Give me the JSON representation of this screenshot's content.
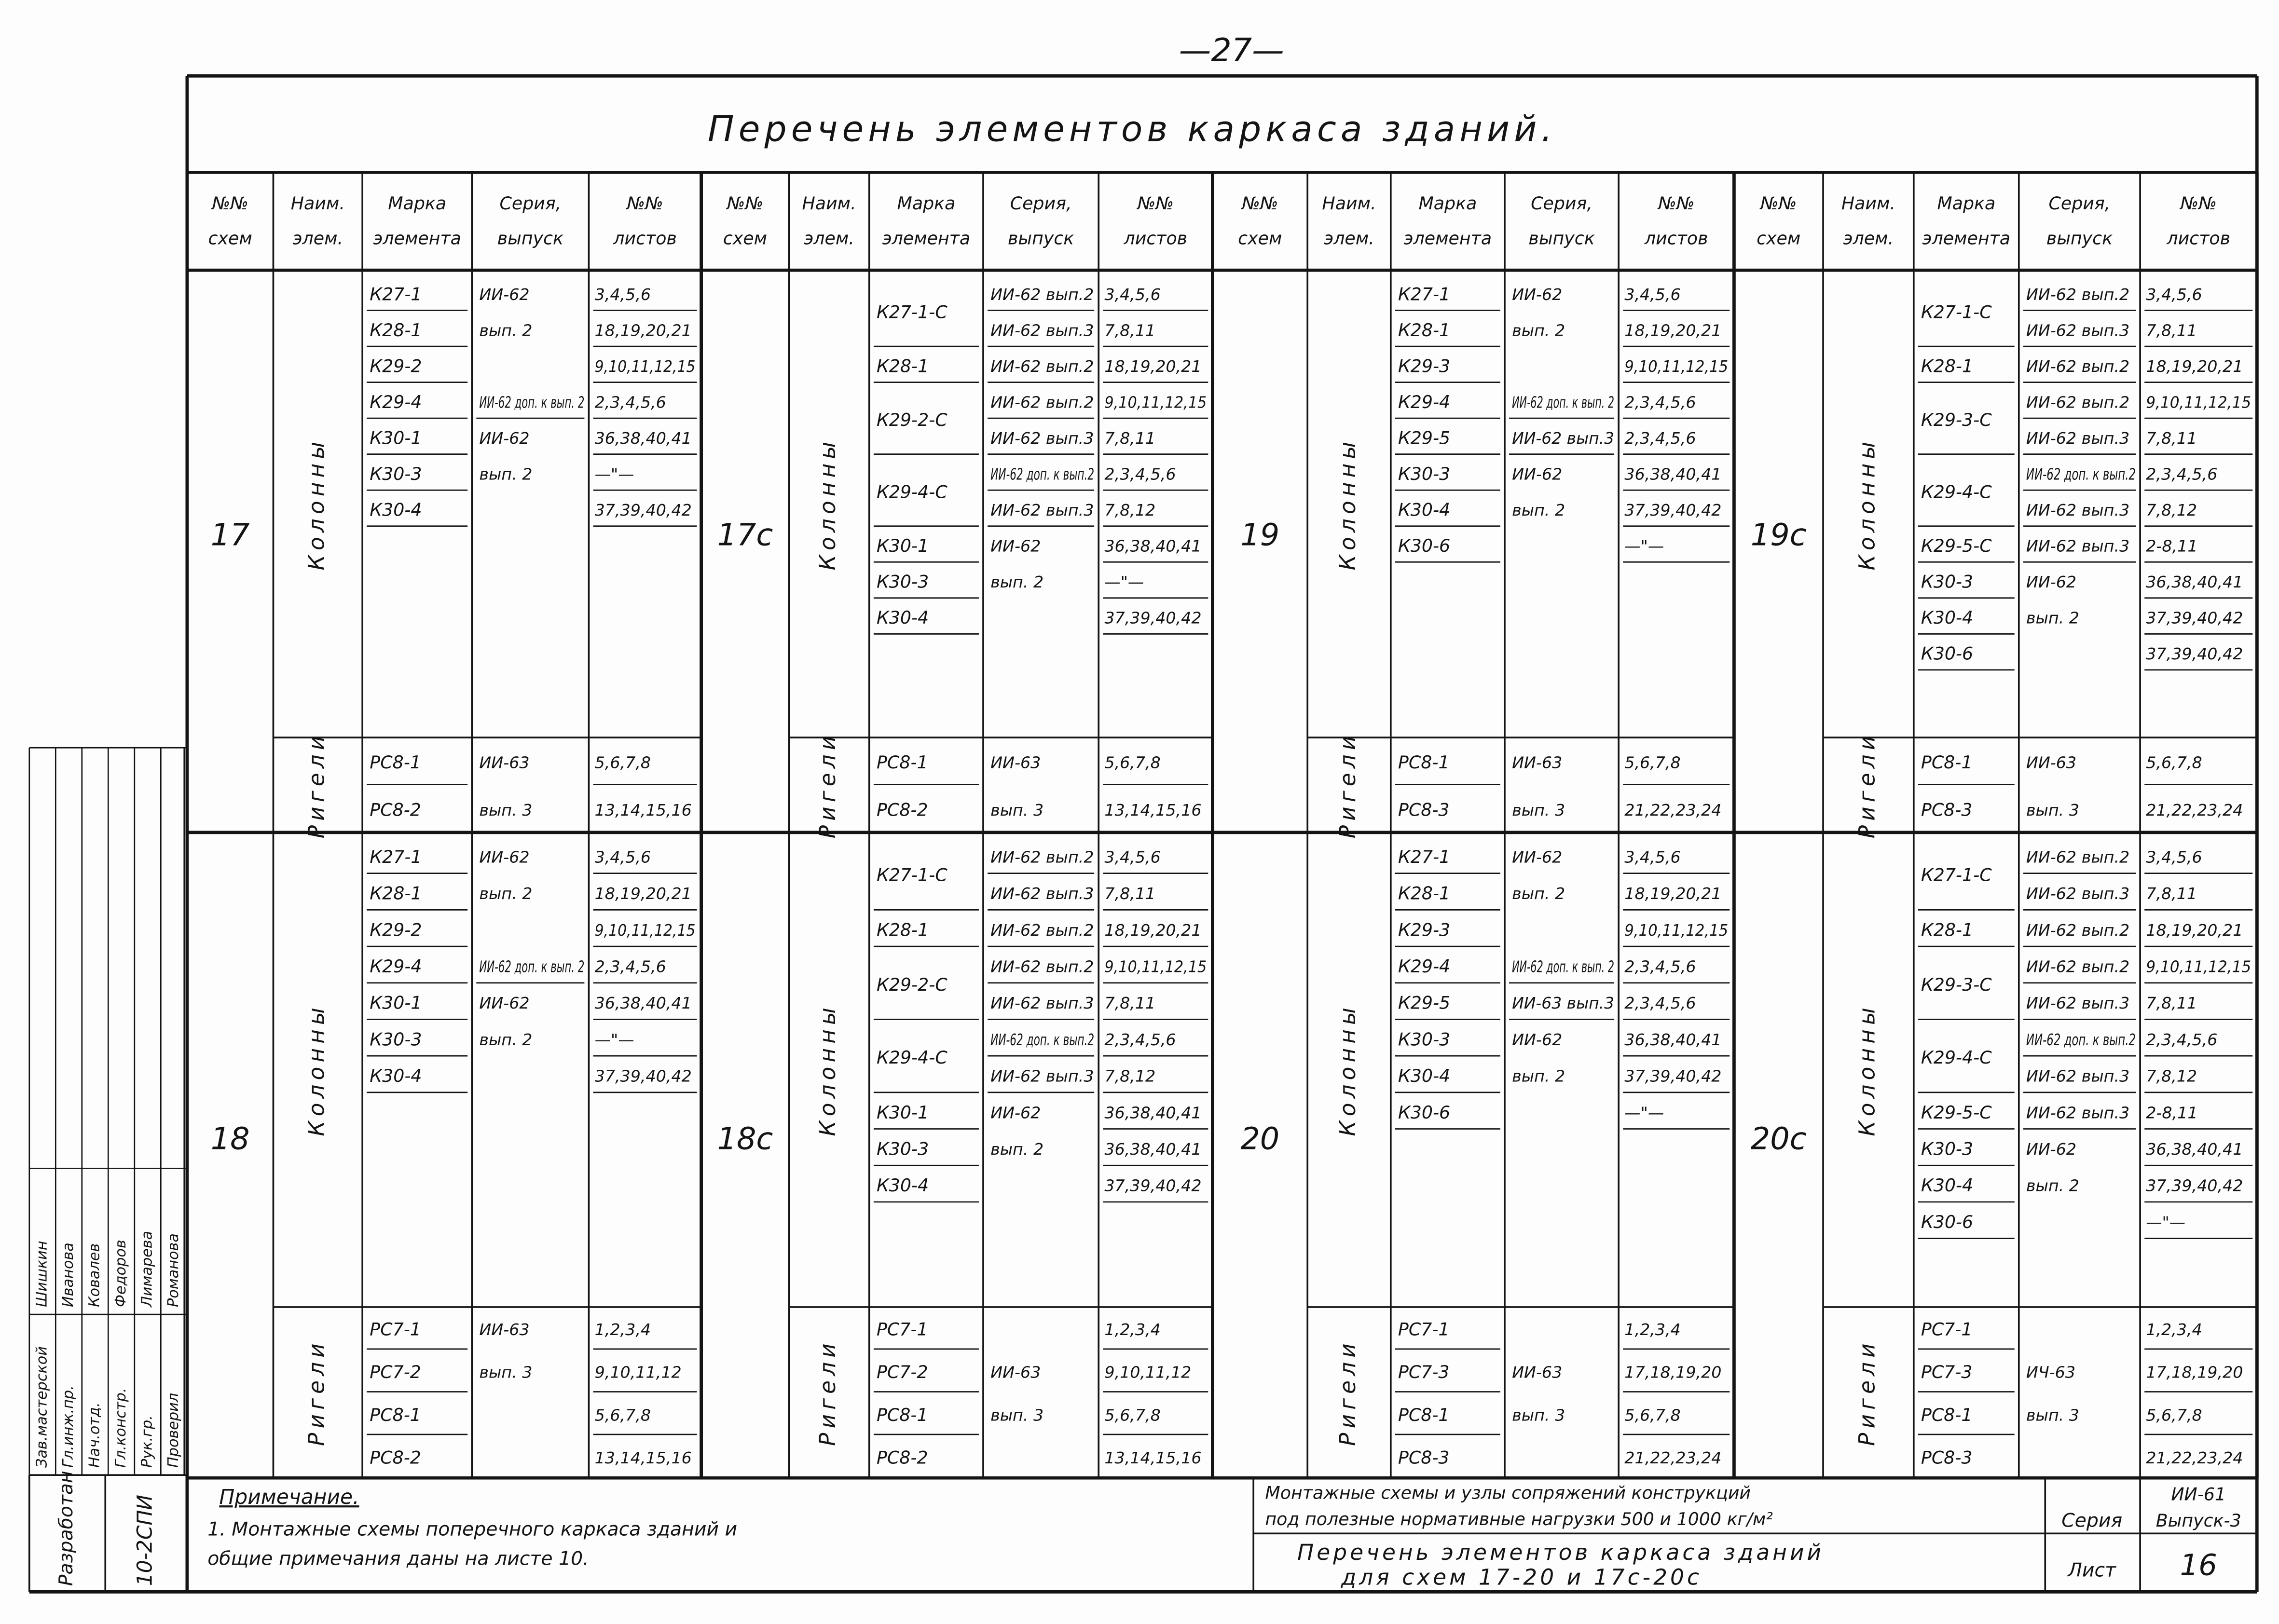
{
  "page_number": "—27—",
  "title": "Перечень элементов каркаса зданий.",
  "headers": [
    [
      "№№",
      "схем"
    ],
    [
      "Наим.",
      "элем."
    ],
    [
      "Марка",
      "элемента"
    ],
    [
      "Серия,",
      "выпуск"
    ],
    [
      "№№",
      "листов"
    ]
  ],
  "blocks": [
    {
      "scheme": "17",
      "groups": [
        {
          "name": "Колонны",
          "rows": [
            [
              "К27-1",
              "ИИ-62",
              "3,4,5,6"
            ],
            [
              "К28-1",
              "вып. 2",
              "18,19,20,21"
            ],
            [
              "К29-2",
              null,
              "9,10,11,12,15"
            ],
            [
              "К29-4",
              "ИИ-62 доп. к вып. 2",
              "2,3,4,5,6"
            ],
            [
              "К30-1",
              "ИИ-62",
              "36,38,40,41"
            ],
            [
              "К30-3",
              "вып. 2",
              "—\"—"
            ],
            [
              "К30-4",
              null,
              "37,39,40,42"
            ]
          ]
        },
        {
          "name": "Ригели",
          "rows": [
            [
              "РС8-1",
              "ИИ-63",
              "5,6,7,8"
            ],
            [
              "РС8-2",
              "вып. 3",
              "13,14,15,16"
            ]
          ]
        }
      ]
    },
    {
      "scheme": "17с",
      "groups": [
        {
          "name": "Колонны",
          "rows": [
            [
              "К27-1-С",
              "ИИ-62 вып.2",
              "3,4,5,6"
            ],
            [
              null,
              "ИИ-62 вып.3",
              "7,8,11"
            ],
            [
              "К28-1",
              "ИИ-62 вып.2",
              "18,19,20,21"
            ],
            [
              "К29-2-С",
              "ИИ-62 вып.2",
              "9,10,11,12,15"
            ],
            [
              null,
              "ИИ-62 вып.3",
              "7,8,11"
            ],
            [
              "К29-4-С",
              "ИИ-62 доп. к вып.2",
              "2,3,4,5,6"
            ],
            [
              null,
              "ИИ-62 вып.3",
              "7,8,12"
            ],
            [
              "К30-1",
              "ИИ-62",
              "36,38,40,41"
            ],
            [
              "К30-3",
              "вып. 2",
              "—\"—"
            ],
            [
              "К30-4",
              null,
              "37,39,40,42"
            ]
          ]
        },
        {
          "name": "Ригели",
          "rows": [
            [
              "РС8-1",
              "ИИ-63",
              "5,6,7,8"
            ],
            [
              "РС8-2",
              "вып. 3",
              "13,14,15,16"
            ]
          ]
        }
      ]
    },
    {
      "scheme": "19",
      "groups": [
        {
          "name": "Колонны",
          "rows": [
            [
              "К27-1",
              "ИИ-62",
              "3,4,5,6"
            ],
            [
              "К28-1",
              "вып. 2",
              "18,19,20,21"
            ],
            [
              "К29-3",
              null,
              "9,10,11,12,15"
            ],
            [
              "К29-4",
              "ИИ-62 доп. к вып. 2",
              "2,3,4,5,6"
            ],
            [
              "К29-5",
              "ИИ-62 вып.3",
              "2,3,4,5,6"
            ],
            [
              "К30-3",
              "ИИ-62",
              "36,38,40,41"
            ],
            [
              "К30-4",
              "вып. 2",
              "37,39,40,42"
            ],
            [
              "К30-6",
              null,
              "—\"—"
            ]
          ]
        },
        {
          "name": "Ригели",
          "rows": [
            [
              "РС8-1",
              "ИИ-63",
              "5,6,7,8"
            ],
            [
              "РС8-3",
              "вып. 3",
              "21,22,23,24"
            ]
          ]
        }
      ]
    },
    {
      "scheme": "19с",
      "groups": [
        {
          "name": "Колонны",
          "rows": [
            [
              "К27-1-С",
              "ИИ-62 вып.2",
              "3,4,5,6"
            ],
            [
              null,
              "ИИ-62 вып.3",
              "7,8,11"
            ],
            [
              "К28-1",
              "ИИ-62 вып.2",
              "18,19,20,21"
            ],
            [
              "К29-3-С",
              "ИИ-62 вып.2",
              "9,10,11,12,15"
            ],
            [
              null,
              "ИИ-62 вып.3",
              "7,8,11"
            ],
            [
              "К29-4-С",
              "ИИ-62 доп. к вып.2",
              "2,3,4,5,6"
            ],
            [
              null,
              "ИИ-62 вып.3",
              "7,8,12"
            ],
            [
              "К29-5-С",
              "ИИ-62 вып.3",
              "2-8,11"
            ],
            [
              "К30-3",
              "ИИ-62",
              "36,38,40,41"
            ],
            [
              "К30-4",
              "вып. 2",
              "37,39,40,42"
            ],
            [
              "К30-6",
              null,
              "37,39,40,42"
            ]
          ]
        },
        {
          "name": "Ригели",
          "rows": [
            [
              "РС8-1",
              "ИИ-63",
              "5,6,7,8"
            ],
            [
              "РС8-3",
              "вып. 3",
              "21,22,23,24"
            ]
          ]
        }
      ]
    },
    {
      "scheme": "18",
      "groups": [
        {
          "name": "Колонны",
          "rows": [
            [
              "К27-1",
              "ИИ-62",
              "3,4,5,6"
            ],
            [
              "К28-1",
              "вып. 2",
              "18,19,20,21"
            ],
            [
              "К29-2",
              null,
              "9,10,11,12,15"
            ],
            [
              "К29-4",
              "ИИ-62 доп. к вып. 2",
              "2,3,4,5,6"
            ],
            [
              "К30-1",
              "ИИ-62",
              "36,38,40,41"
            ],
            [
              "К30-3",
              "вып. 2",
              "—\"—"
            ],
            [
              "К30-4",
              null,
              "37,39,40,42"
            ]
          ]
        },
        {
          "name": "Ригели",
          "rows": [
            [
              "РС7-1",
              "ИИ-63",
              "1,2,3,4"
            ],
            [
              "РС7-2",
              "вып. 3",
              "9,10,11,12"
            ],
            [
              "РС8-1",
              null,
              "5,6,7,8"
            ],
            [
              "РС8-2",
              null,
              "13,14,15,16"
            ]
          ]
        }
      ]
    },
    {
      "scheme": "18с",
      "groups": [
        {
          "name": "Колонны",
          "rows": [
            [
              "К27-1-С",
              "ИИ-62 вып.2",
              "3,4,5,6"
            ],
            [
              null,
              "ИИ-62 вып.3",
              "7,8,11"
            ],
            [
              "К28-1",
              "ИИ-62 вып.2",
              "18,19,20,21"
            ],
            [
              "К29-2-С",
              "ИИ-62 вып.2",
              "9,10,11,12,15"
            ],
            [
              null,
              "ИИ-62 вып.3",
              "7,8,11"
            ],
            [
              "К29-4-С",
              "ИИ-62 доп. к вып.2",
              "2,3,4,5,6"
            ],
            [
              null,
              "ИИ-62 вып.3",
              "7,8,12"
            ],
            [
              "К30-1",
              "ИИ-62",
              "36,38,40,41"
            ],
            [
              "К30-3",
              "вып. 2",
              "36,38,40,41"
            ],
            [
              "К30-4",
              null,
              "37,39,40,42"
            ]
          ]
        },
        {
          "name": "Ригели",
          "rows": [
            [
              "РС7-1",
              null,
              "1,2,3,4"
            ],
            [
              "РС7-2",
              "ИИ-63",
              "9,10,11,12"
            ],
            [
              "РС8-1",
              "вып. 3",
              "5,6,7,8"
            ],
            [
              "РС8-2",
              null,
              "13,14,15,16"
            ]
          ]
        }
      ]
    },
    {
      "scheme": "20",
      "groups": [
        {
          "name": "Колонны",
          "rows": [
            [
              "К27-1",
              "ИИ-62",
              "3,4,5,6"
            ],
            [
              "К28-1",
              "вып. 2",
              "18,19,20,21"
            ],
            [
              "К29-3",
              null,
              "9,10,11,12,15"
            ],
            [
              "К29-4",
              "ИИ-62 доп. к вып. 2",
              "2,3,4,5,6"
            ],
            [
              "К29-5",
              "ИИ-63 вып.3",
              "2,3,4,5,6"
            ],
            [
              "К30-3",
              "ИИ-62",
              "36,38,40,41"
            ],
            [
              "К30-4",
              "вып. 2",
              "37,39,40,42"
            ],
            [
              "К30-6",
              null,
              "—\"—"
            ]
          ]
        },
        {
          "name": "Ригели",
          "rows": [
            [
              "РС7-1",
              null,
              "1,2,3,4"
            ],
            [
              "РС7-3",
              "ИИ-63",
              "17,18,19,20"
            ],
            [
              "РС8-1",
              "вып. 3",
              "5,6,7,8"
            ],
            [
              "РС8-3",
              null,
              "21,22,23,24"
            ]
          ]
        }
      ]
    },
    {
      "scheme": "20с",
      "groups": [
        {
          "name": "Колонны",
          "rows": [
            [
              "К27-1-С",
              "ИИ-62 вып.2",
              "3,4,5,6"
            ],
            [
              null,
              "ИИ-62 вып.3",
              "7,8,11"
            ],
            [
              "К28-1",
              "ИИ-62 вып.2",
              "18,19,20,21"
            ],
            [
              "К29-3-С",
              "ИИ-62 вып.2",
              "9,10,11,12,15"
            ],
            [
              null,
              "ИИ-62 вып.3",
              "7,8,11"
            ],
            [
              "К29-4-С",
              "ИИ-62 доп. к вып.2",
              "2,3,4,5,6"
            ],
            [
              null,
              "ИИ-62 вып.3",
              "7,8,12"
            ],
            [
              "К29-5-С",
              "ИИ-62 вып.3",
              "2-8,11"
            ],
            [
              "К30-3",
              "ИИ-62",
              "36,38,40,41"
            ],
            [
              "К30-4",
              "вып. 2",
              "37,39,40,42"
            ],
            [
              "К30-6",
              null,
              "—\"—"
            ]
          ]
        },
        {
          "name": "Ригели",
          "rows": [
            [
              "РС7-1",
              null,
              "1,2,3,4"
            ],
            [
              "РС7-3",
              "ИЧ-63",
              "17,18,19,20"
            ],
            [
              "РС8-1",
              "вып. 3",
              "5,6,7,8"
            ],
            [
              "РС8-3",
              null,
              "21,22,23,24"
            ]
          ]
        }
      ]
    }
  ],
  "stamp": {
    "note_title": "Примечание.",
    "note_lines": [
      "1. Монтажные схемы поперечного каркаса зданий и",
      "общие примечания даны на листе 10."
    ],
    "project_lines": [
      "Монтажные схемы и узлы сопряжений конструкций",
      "под полезные нормативные нагрузки 500 и 1000 кг/м²"
    ],
    "series_label": "Серия",
    "series_value": [
      "ИИ-61",
      "Выпуск-3"
    ],
    "sheet_title_lines": [
      "Перечень элементов каркаса зданий",
      "для схем 17-20 и 17с-20с"
    ],
    "sheet_label": "Лист",
    "sheet_number": "16"
  },
  "side_stamp": {
    "org": "Разработан",
    "code": "10-2СПИ",
    "rows": [
      [
        "Зав.мастерской",
        "Шишкин"
      ],
      [
        "Гл.инж.пр.",
        "Иванова"
      ],
      [
        "Нач.отд.",
        "Ковалев"
      ],
      [
        "Гл.констр.",
        "Федоров"
      ],
      [
        "Рук.гр.",
        "Лимарева"
      ],
      [
        "Проверил",
        "Романова"
      ]
    ]
  }
}
